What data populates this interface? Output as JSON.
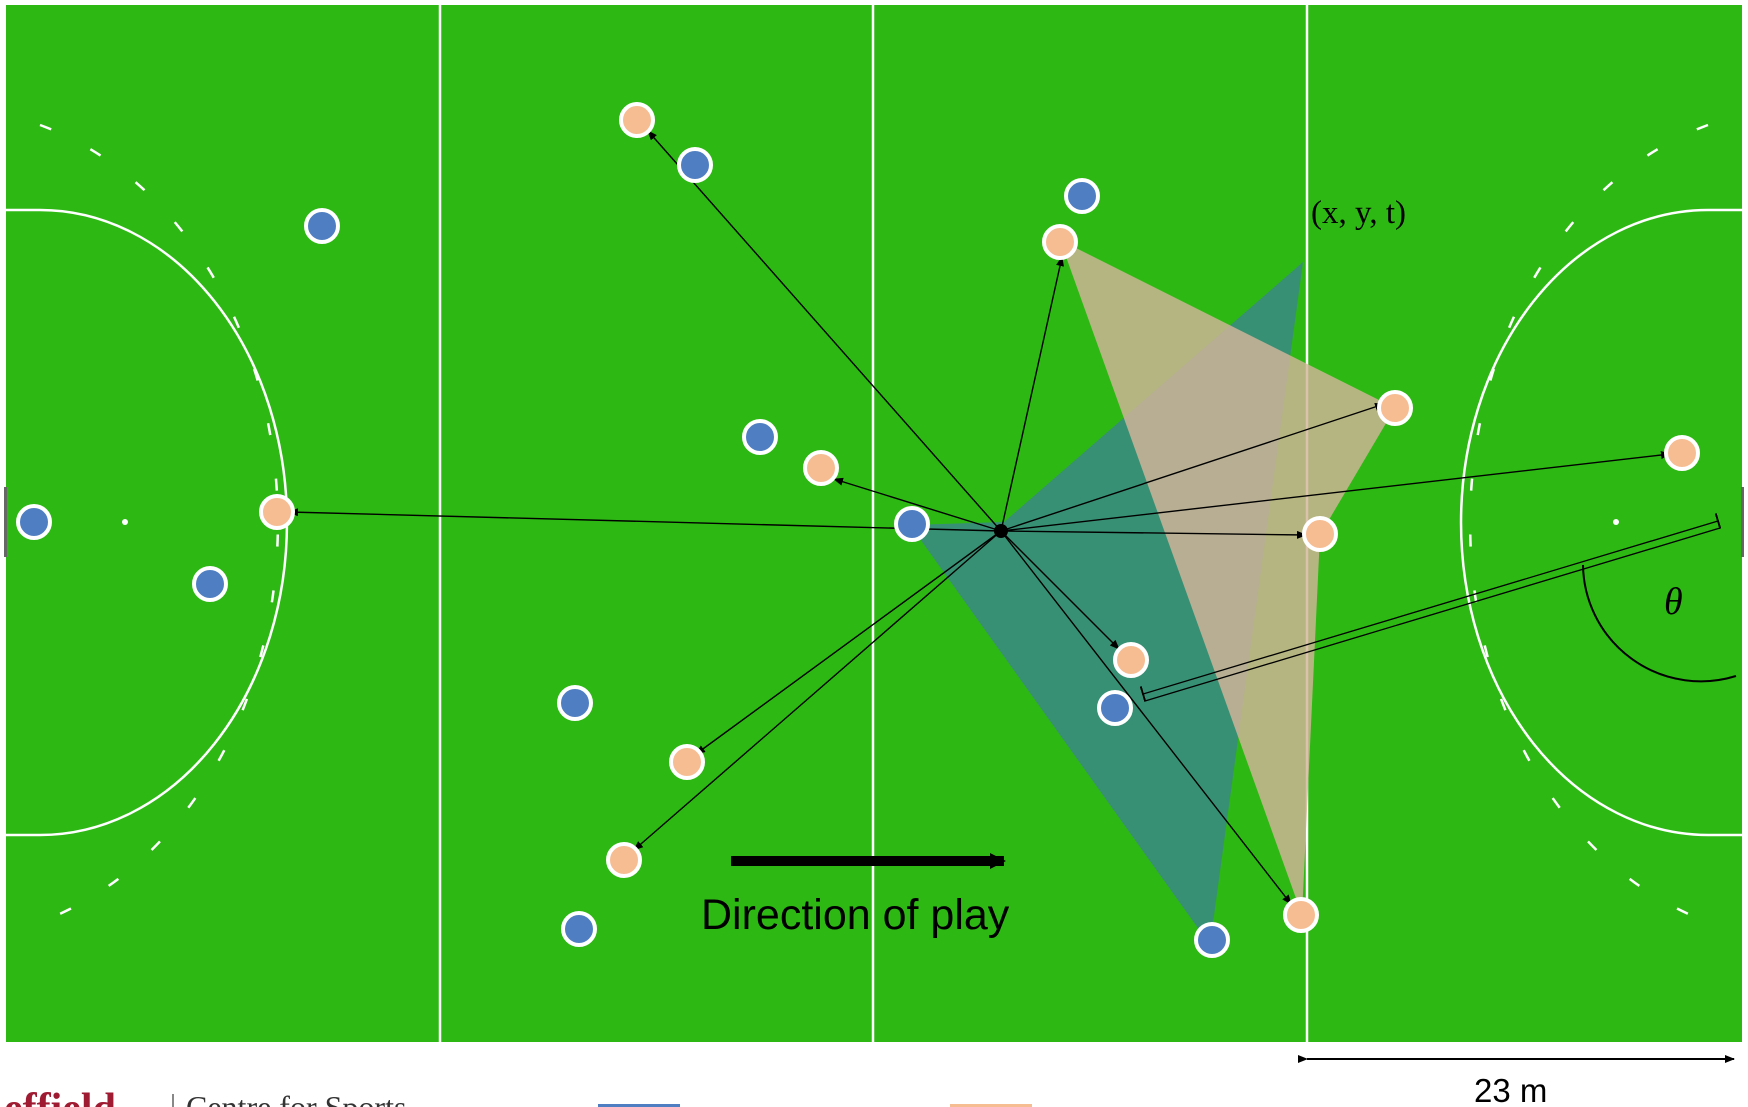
{
  "labels": {
    "coordinate": "(x, y, t)",
    "angle": "θ",
    "direction": "Direction of play",
    "distance": "23 m",
    "footer_left": "effield",
    "footer_right": "Centre for Sports"
  },
  "colors": {
    "pitch": "#2db814",
    "line": "#ffffff",
    "team_blue": "#4f7fc2",
    "team_orange": "#f6bd93",
    "region_teal": "#3a8c7e",
    "region_tan": "#d3b49a",
    "footer_brand": "#9e1b32"
  },
  "players": {
    "blue": [
      {
        "id": "b1"
      },
      {
        "id": "b2"
      },
      {
        "id": "b3"
      },
      {
        "id": "b4"
      },
      {
        "id": "b5"
      },
      {
        "id": "b6"
      },
      {
        "id": "b7"
      },
      {
        "id": "b8"
      },
      {
        "id": "b9"
      },
      {
        "id": "b10"
      },
      {
        "id": "b11"
      }
    ],
    "orange": [
      {
        "id": "o1"
      },
      {
        "id": "o2"
      },
      {
        "id": "o3"
      },
      {
        "id": "o4"
      },
      {
        "id": "o5"
      },
      {
        "id": "o6"
      },
      {
        "id": "o7"
      },
      {
        "id": "o8"
      },
      {
        "id": "o9"
      },
      {
        "id": "o10"
      },
      {
        "id": "o11"
      }
    ]
  }
}
